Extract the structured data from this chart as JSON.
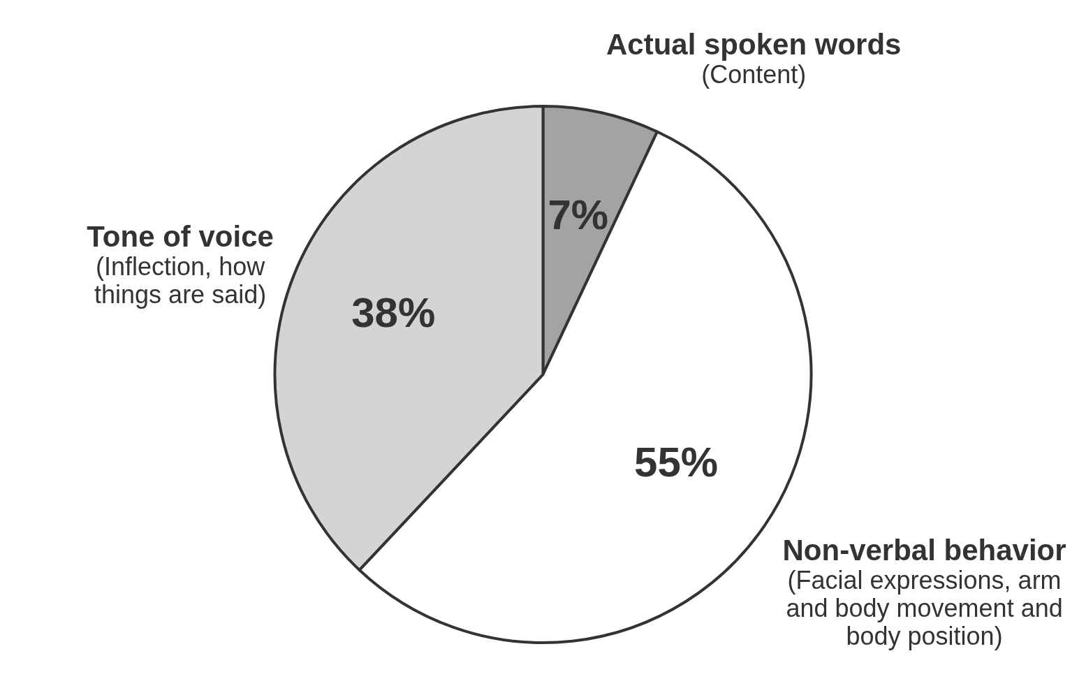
{
  "chart_data": {
    "type": "pie",
    "categories": [
      "Actual spoken words\n(Content)",
      "Non-verbal behavior\n(Facial expressions, arm\nand body movement and\nbody position)",
      "Tone of voice\n(Inflection, how\nthings are said)"
    ],
    "values": [
      7,
      55,
      38
    ],
    "value_labels": [
      "7%",
      "55%",
      "38%"
    ],
    "colors": [
      "#a3a3a3",
      "#ffffff",
      "#d4d4d4"
    ],
    "legend": false
  }
}
